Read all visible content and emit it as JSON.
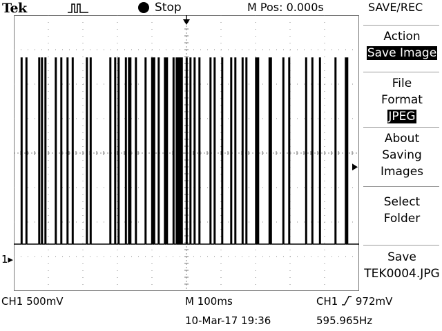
{
  "header": {
    "brand": "Tek",
    "trigger_icon": "pulse-trigger-icon",
    "status": "Stop",
    "mpos": "M Pos: 0.000s",
    "menu_title": "SAVE/REC"
  },
  "menu": {
    "action": {
      "title": "Action",
      "value": "Save Image"
    },
    "file_format": {
      "title1": "File",
      "title2": "Format",
      "value": "JPEG"
    },
    "about": {
      "line1": "About",
      "line2": "Saving",
      "line3": "Images"
    },
    "select_folder": {
      "line1": "Select",
      "line2": "Folder"
    },
    "save": {
      "line1": "Save",
      "line2": "TEK0004.JPG"
    }
  },
  "footer": {
    "ch1_scale": "CH1  500mV",
    "timebase": "M 100ms",
    "datetime": "10-Mar-17 19:36",
    "trigger_source": "CH1",
    "trigger_level": "972mV",
    "frequency": "595.965Hz"
  },
  "channel_marker": "1",
  "chart_data": {
    "type": "line",
    "title": "",
    "xlabel": "",
    "ylabel": "",
    "divisions": {
      "x": 10,
      "y": 8
    },
    "xlim": [
      -0.5,
      0.5
    ],
    "ylim": [
      -2.0,
      2.0
    ],
    "baseline_v": -1.32,
    "high_v": 1.38,
    "pulse_times_s": [
      -0.479,
      -0.465,
      -0.428,
      -0.42,
      -0.41,
      -0.38,
      -0.364,
      -0.346,
      -0.331,
      -0.29,
      -0.279,
      -0.222,
      -0.208,
      -0.198,
      -0.177,
      -0.168,
      -0.164,
      -0.148,
      -0.12,
      -0.101,
      -0.095,
      -0.082,
      -0.064,
      -0.058,
      -0.039,
      -0.03,
      -0.027,
      -0.024,
      -0.021,
      -0.018,
      -0.015,
      -0.001,
      0.01,
      0.022,
      0.036,
      0.068,
      0.08,
      0.102,
      0.128,
      0.14,
      0.161,
      0.172,
      0.2,
      0.206,
      0.239,
      0.243,
      0.279,
      0.296,
      0.345,
      0.363,
      0.385,
      0.43,
      0.46,
      0.464
    ]
  }
}
